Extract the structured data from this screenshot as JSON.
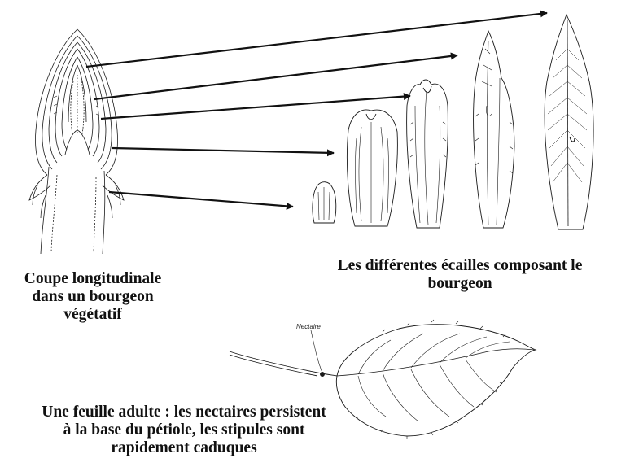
{
  "captions": {
    "bud_section": [
      "Coupe longitudinale",
      "dans un bourgeon",
      "végétatif"
    ],
    "scales": [
      "Les différentes écailles composant le",
      "bourgeon"
    ],
    "adult_leaf": [
      "Une feuille adulte : les nectaires persistent",
      "à la base du pétiole, les stipules sont",
      "rapidement caduques"
    ]
  },
  "labels": {
    "nectary": "Nectaire"
  },
  "colors": {
    "ink": "#1a1a1a",
    "background": "#ffffff"
  }
}
